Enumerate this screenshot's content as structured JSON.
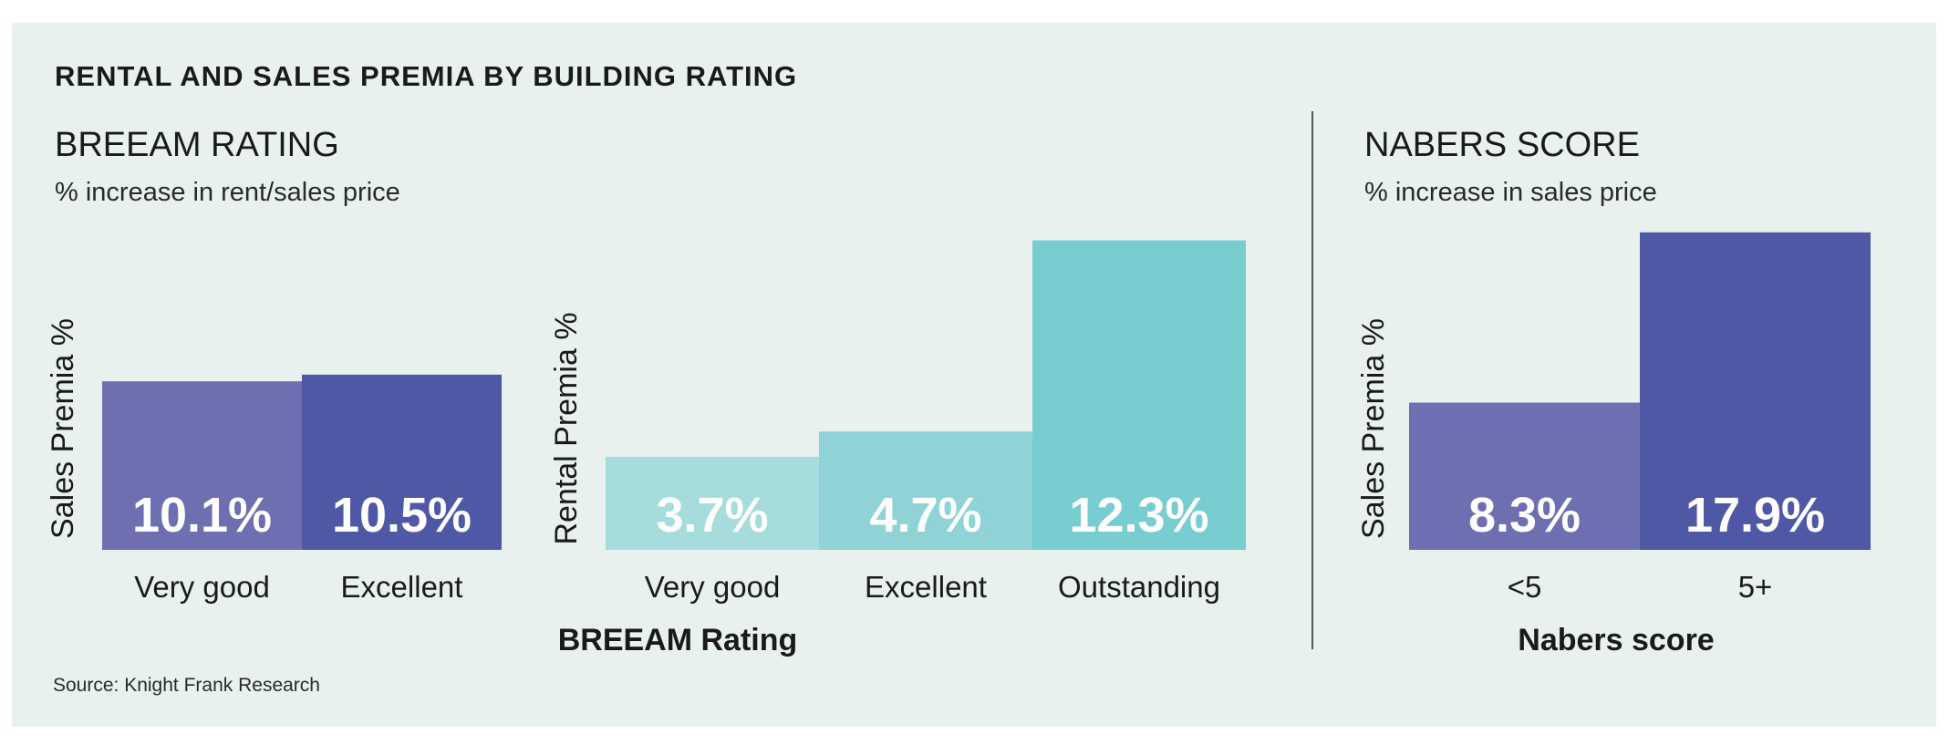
{
  "title": "RENTAL AND SALES PREMIA BY BUILDING RATING",
  "breeam": {
    "title": "BREEAM RATING",
    "subtitle": "% increase in rent/sales price"
  },
  "nabers": {
    "title": "NABERS SCORE",
    "subtitle": "% increase in sales price"
  },
  "source": "Source: Knight Frank Research",
  "chart_data": [
    {
      "type": "bar",
      "categories": [
        "Very good",
        "Excellent"
      ],
      "values": [
        10.1,
        10.5
      ],
      "data_labels": [
        "10.1%",
        "10.5%"
      ],
      "colors": [
        "#6e6fb0",
        "#4f58a5"
      ],
      "xlabel": "",
      "ylabel": "Sales Premia %",
      "ylim": [
        0,
        12
      ]
    },
    {
      "type": "bar",
      "categories": [
        "Very good",
        "Excellent",
        "Outstanding"
      ],
      "values": [
        3.7,
        4.7,
        12.3
      ],
      "data_labels": [
        "3.7%",
        "4.7%",
        "12.3%"
      ],
      "colors": [
        "#a7dcdc",
        "#8fd3d6",
        "#78cdd0"
      ],
      "xlabel": "BREEAM Rating",
      "ylabel": "Rental Premia %",
      "ylim": [
        0,
        12.5
      ]
    },
    {
      "type": "bar",
      "categories": [
        "<5",
        "5+"
      ],
      "values": [
        8.3,
        17.9
      ],
      "data_labels": [
        "8.3%",
        "17.9%"
      ],
      "colors": [
        "#6e6fb0",
        "#4f58a5"
      ],
      "xlabel": "Nabers score",
      "ylabel": "Sales Premia %",
      "ylim": [
        0,
        18
      ]
    }
  ]
}
